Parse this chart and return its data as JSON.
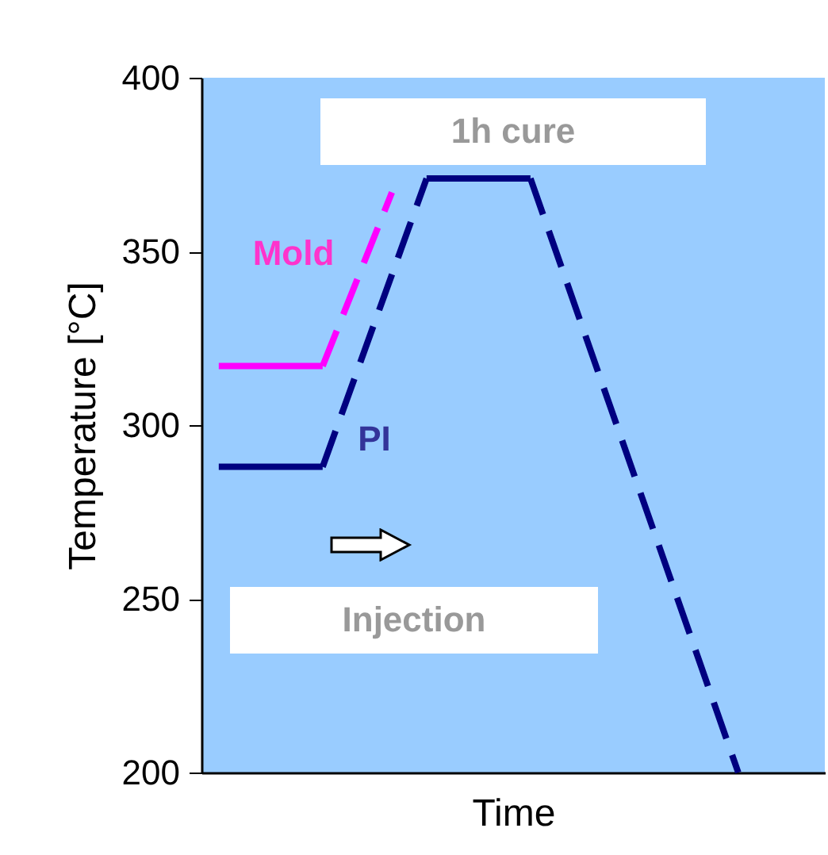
{
  "chart_data": {
    "type": "line",
    "xlabel": "Time",
    "ylabel": "Temperature [°C]",
    "categories": [
      null,
      null,
      null,
      null,
      null,
      null,
      null,
      null,
      null,
      null,
      null,
      null,
      null,
      null,
      null,
      null,
      null,
      null
    ],
    "ylim": [
      200,
      400
    ],
    "yticks": [
      200,
      250,
      300,
      350,
      400
    ],
    "tick_labels": "y",
    "grid": false,
    "marker": "none",
    "series": [
      {
        "color": "#000080",
        "line_style": "solid",
        "values": [
          288,
          null,
          null,
          288,
          null,
          null,
          null,
          null,
          null,
          null,
          null,
          null,
          null,
          null,
          null,
          null,
          null,
          null
        ]
      },
      {
        "color": "#000080",
        "line_style": "dashed",
        "values": [
          null,
          null,
          null,
          288,
          null,
          null,
          371,
          null,
          null,
          null,
          null,
          null,
          null,
          null,
          null,
          null,
          null,
          null
        ]
      },
      {
        "color": "#000080",
        "line_style": "solid",
        "values": [
          null,
          null,
          null,
          null,
          null,
          null,
          371,
          null,
          null,
          371,
          null,
          null,
          null,
          null,
          null,
          null,
          null,
          null
        ]
      },
      {
        "color": "#000080",
        "line_style": "dashed",
        "values": [
          null,
          null,
          null,
          null,
          null,
          null,
          null,
          null,
          null,
          371,
          null,
          null,
          null,
          null,
          null,
          200,
          null,
          null
        ]
      },
      {
        "color": "#ff00ff",
        "line_style": "solid",
        "values": [
          317,
          null,
          null,
          317,
          null,
          null,
          null,
          null,
          null,
          null,
          null,
          null,
          null,
          null,
          null,
          null,
          null,
          null
        ]
      },
      {
        "color": "#ff00ff",
        "line_style": "dashed",
        "values": [
          null,
          null,
          null,
          317,
          null,
          367,
          null,
          null,
          null,
          null,
          null,
          null,
          null,
          null,
          null,
          null,
          null,
          null
        ]
      }
    ],
    "annotations": [
      "Mold",
      "PI",
      "1h cure",
      "Injection"
    ]
  }
}
